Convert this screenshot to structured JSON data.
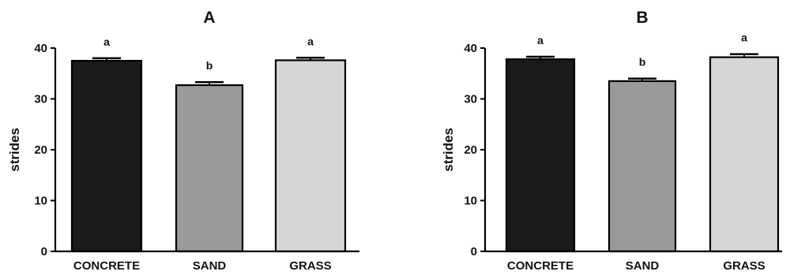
{
  "chart_data": [
    {
      "type": "bar",
      "title": "A",
      "ylabel": "strides",
      "xlabel": "",
      "ylim": [
        0,
        40
      ],
      "yticks": [
        0,
        10,
        20,
        30,
        40
      ],
      "categories": [
        "CONCRETE",
        "SAND",
        "GRASS"
      ],
      "values": [
        37.5,
        32.7,
        37.6
      ],
      "errors": [
        0.5,
        0.6,
        0.5
      ],
      "significance": [
        "a",
        "b",
        "a"
      ],
      "bar_colors": [
        "#1a1a1a",
        "#9a9a9a",
        "#d6d6d6"
      ],
      "grid": false
    },
    {
      "type": "bar",
      "title": "B",
      "ylabel": "strides",
      "xlabel": "",
      "ylim": [
        0,
        40
      ],
      "yticks": [
        0,
        10,
        20,
        30,
        40
      ],
      "categories": [
        "CONCRETE",
        "SAND",
        "GRASS"
      ],
      "values": [
        37.8,
        33.5,
        38.2
      ],
      "errors": [
        0.5,
        0.5,
        0.6
      ],
      "significance": [
        "a",
        "b",
        "a"
      ],
      "bar_colors": [
        "#1a1a1a",
        "#9a9a9a",
        "#d6d6d6"
      ],
      "grid": false
    }
  ]
}
